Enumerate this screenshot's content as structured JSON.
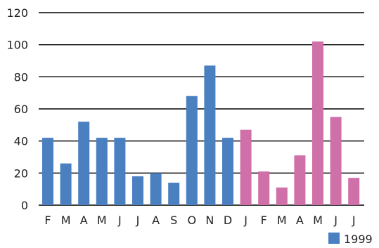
{
  "chart_data": {
    "type": "bar",
    "categories": [
      "F",
      "M",
      "A",
      "M",
      "J",
      "J",
      "A",
      "S",
      "O",
      "N",
      "D",
      "J",
      "F",
      "M",
      "A",
      "M",
      "J",
      "J"
    ],
    "values": [
      42,
      26,
      52,
      42,
      42,
      18,
      20,
      14,
      68,
      87,
      42,
      47,
      21,
      11,
      31,
      102,
      55,
      17
    ],
    "ylim": [
      0,
      120
    ],
    "yticks": [
      0,
      20,
      40,
      60,
      80,
      100,
      120
    ],
    "grid": true,
    "colors": {
      "series_1999": "#4a7fc0",
      "series_other": "#d070a8",
      "grid": "#000000"
    },
    "series_boundary_index": 11,
    "legend": {
      "label": "1999",
      "placement": "bottom-right"
    }
  }
}
